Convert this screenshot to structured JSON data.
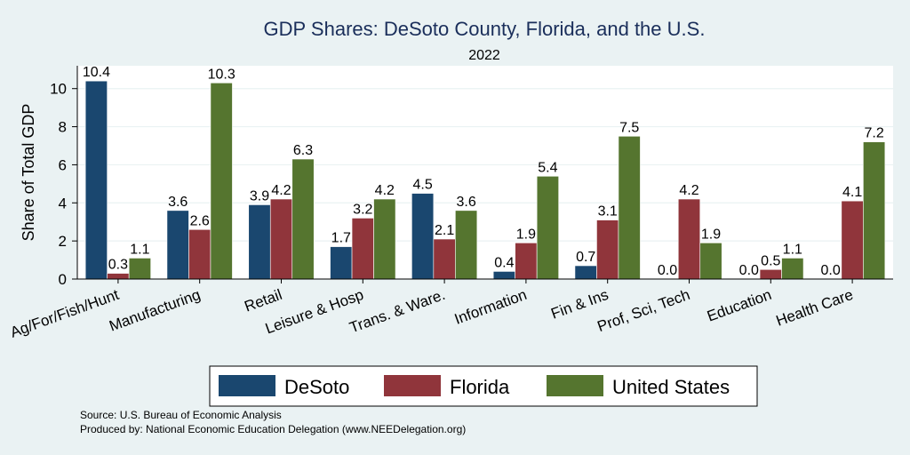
{
  "chart_data": {
    "type": "bar",
    "title": "GDP Shares: DeSoto County, Florida, and the U.S.",
    "subtitle": "2022",
    "ylabel": "Share of Total GDP",
    "xlabel": "",
    "ylim": [
      0,
      11.2
    ],
    "yticks": [
      0,
      2,
      4,
      6,
      8,
      10
    ],
    "grid": true,
    "legend_position": "bottom",
    "categories": [
      "Ag/For/Fish/Hunt",
      "Manufacturing",
      "Retail",
      "Leisure & Hosp",
      "Trans. & Ware.",
      "Information",
      "Fin & Ins",
      "Prof, Sci, Tech",
      "Education",
      "Health Care"
    ],
    "series": [
      {
        "name": "DeSoto",
        "color": "#1a476f",
        "values": [
          10.4,
          3.6,
          3.9,
          1.7,
          4.5,
          0.4,
          0.7,
          0.0,
          0.0,
          0.0
        ]
      },
      {
        "name": "Florida",
        "color": "#90353b",
        "values": [
          0.3,
          2.6,
          4.2,
          3.2,
          2.1,
          1.9,
          3.1,
          4.2,
          0.5,
          4.1
        ]
      },
      {
        "name": "United States",
        "color": "#55752f",
        "values": [
          1.1,
          10.3,
          6.3,
          4.2,
          3.6,
          5.4,
          7.5,
          1.9,
          1.1,
          7.2
        ]
      }
    ],
    "source_lines": [
      "Source: U.S. Bureau of Economic Analysis",
      "Produced by: National Economic Education Delegation (www.NEEDelegation.org)"
    ]
  }
}
